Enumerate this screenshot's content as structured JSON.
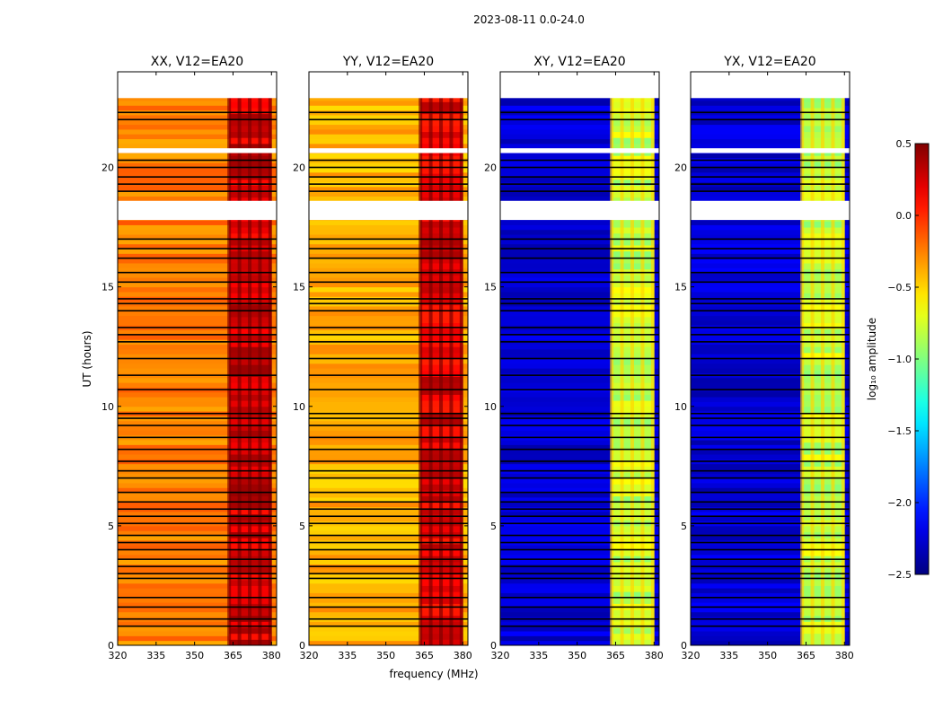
{
  "figure": {
    "suptitle": "2023-08-11 0.0-24.0"
  },
  "colors": {
    "jet_low": "#00007f",
    "jet_mid": "#7fff7f",
    "jet_high": "#7f0000",
    "flag_white": "#ffffff",
    "flag_black": "#000000"
  },
  "chart_data": {
    "type": "heatmap",
    "shared": {
      "xlabel": "frequency (MHz)",
      "ylabel": "UT (hours)",
      "xlim": [
        320,
        382
      ],
      "ylim": [
        0,
        24
      ],
      "xticks": [
        320,
        335,
        350,
        365,
        380
      ],
      "yticks": [
        0,
        5,
        10,
        15,
        20
      ],
      "rfi_band_mhz": [
        363.5,
        380
      ],
      "rfi_columns_mhz": [
        363.5,
        367.5,
        371.5,
        375.5,
        379.5
      ],
      "no_data_ut": [
        [
          22.9,
          24
        ],
        [
          18.6,
          17.8
        ],
        [
          20.8,
          20.6
        ]
      ],
      "flagged_ut": [
        0.8,
        1.1,
        1.6,
        2.0,
        2.8,
        3.0,
        3.3,
        3.6,
        4.0,
        4.3,
        4.6,
        5.1,
        5.4,
        5.7,
        6.0,
        6.4,
        7.0,
        7.3,
        7.7,
        8.2,
        8.7,
        9.2,
        9.5,
        9.7,
        10.7,
        11.3,
        12.0,
        12.7,
        13.0,
        13.3,
        14.0,
        14.3,
        14.5,
        15.2,
        15.6,
        16.2,
        16.6,
        17.0,
        19.0,
        19.3,
        19.6,
        20.0,
        20.3,
        22.0,
        22.3
      ]
    },
    "panels": [
      {
        "title": "XX, V12=EA20",
        "base_log_amplitude": -0.25,
        "rfi_log_amplitude": 0.25
      },
      {
        "title": "YY, V12=EA20",
        "base_log_amplitude": -0.4,
        "rfi_log_amplitude": 0.2
      },
      {
        "title": "XY, V12=EA20",
        "base_log_amplitude": -2.25,
        "rfi_log_amplitude": -0.8
      },
      {
        "title": "YX, V12=EA20",
        "base_log_amplitude": -2.25,
        "rfi_log_amplitude": -0.8
      }
    ],
    "colorbar": {
      "label": "log₁₀ amplitude",
      "range": [
        -2.5,
        0.5
      ],
      "ticks": [
        -2.5,
        -2.0,
        -1.5,
        -1.0,
        -0.5,
        0.0,
        0.5
      ],
      "tick_labels": [
        "−2.5",
        "−2.0",
        "−1.5",
        "−1.0",
        "−0.5",
        "0.0",
        "0.5"
      ]
    }
  }
}
